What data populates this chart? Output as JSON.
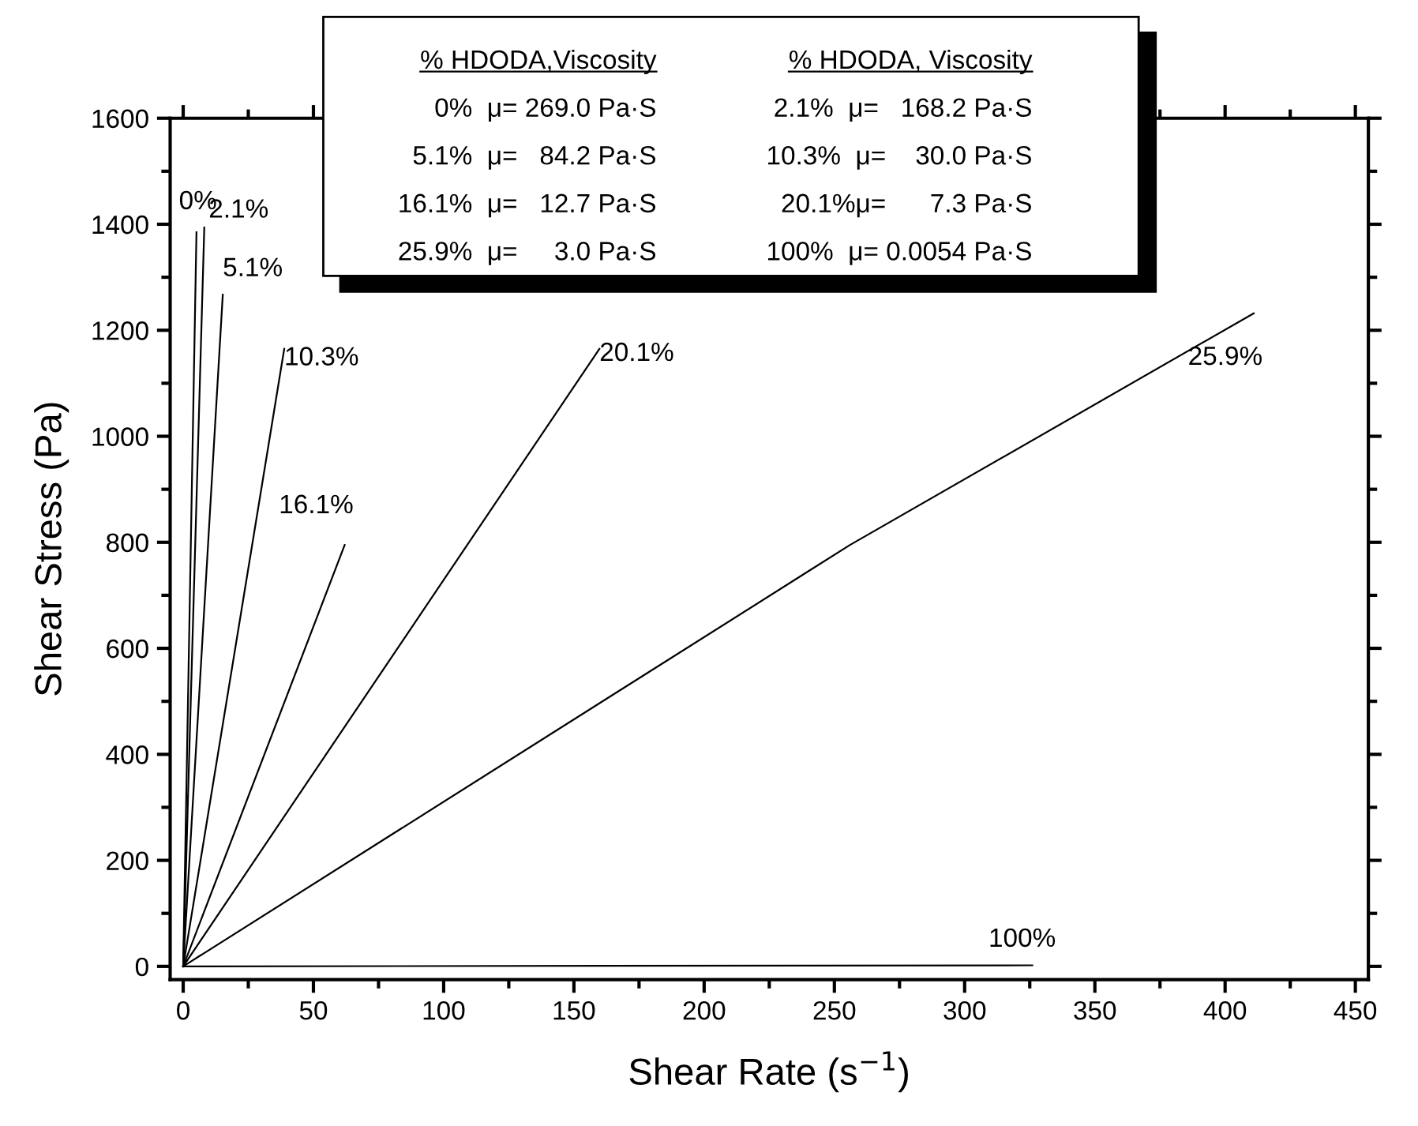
{
  "chart_data": {
    "type": "line",
    "xlabel": "Shear Rate (s$^{−1}$)",
    "ylabel": "Shear Stress (Pa)",
    "xlim": [
      -5,
      455
    ],
    "ylim": [
      -25,
      1600
    ],
    "xticks": [
      0,
      50,
      100,
      150,
      200,
      250,
      300,
      350,
      400,
      450
    ],
    "yticks": [
      0,
      200,
      400,
      600,
      800,
      1000,
      1200,
      1400,
      1600
    ],
    "grid": false,
    "legend": false,
    "marker": "none",
    "line_style": "solid",
    "series": [
      {
        "name": "0%",
        "color": "#000000",
        "x": [
          0,
          5.1
        ],
        "values": [
          0,
          1385
        ]
      },
      {
        "name": "2.1%",
        "color": "#000000",
        "x": [
          0,
          8.1
        ],
        "values": [
          0,
          1394
        ]
      },
      {
        "name": "5.1%",
        "color": "#000000",
        "x": [
          0,
          15.2
        ],
        "values": [
          0,
          1267
        ]
      },
      {
        "name": "10.3%",
        "color": "#000000",
        "x": [
          0,
          38.8
        ],
        "values": [
          0,
          1165
        ]
      },
      {
        "name": "16.1%",
        "color": "#000000",
        "x": [
          0,
          62
        ],
        "values": [
          0,
          795
        ]
      },
      {
        "name": "20.1%",
        "color": "#000000",
        "x": [
          0,
          159.8
        ],
        "values": [
          0,
          1165
        ]
      },
      {
        "name": "25.9%",
        "color": "#000000",
        "x": [
          0,
          256,
          411
        ],
        "values": [
          0,
          795,
          1232
        ]
      },
      {
        "name": "100%",
        "color": "#000000",
        "x": [
          0,
          326
        ],
        "values": [
          0,
          2
        ]
      }
    ],
    "annotations": [
      "% HDODA,Viscosity",
      "% HDODA, Viscosity",
      "0%  μ= 269.0 Pa·S",
      "2.1%  μ=   168.2 Pa·S",
      "5.1%  μ=   84.2 Pa·S",
      "10.3%  μ=    30.0 Pa·S",
      "16.1%  μ=   12.7 Pa·S",
      "20.1%μ=      7.3 Pa·S",
      "25.9%  μ=     3.0 Pa·S",
      "100%  μ= 0.0054 Pa·S"
    ]
  }
}
